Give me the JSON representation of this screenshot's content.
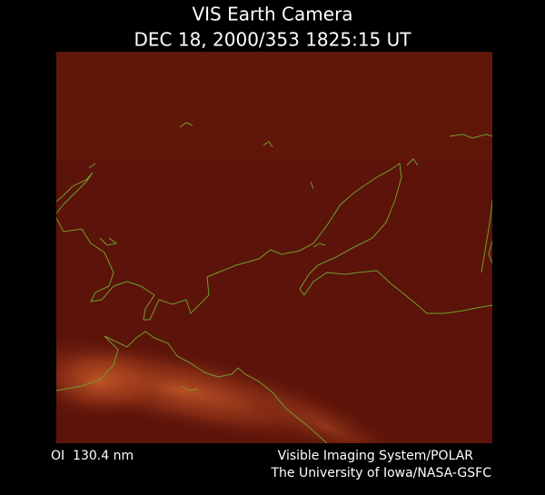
{
  "header": {
    "title": "VIS Earth Camera",
    "timestamp": "DEC 18, 2000/353 1825:15 UT"
  },
  "footer": {
    "filter": "OI  130.4 nm",
    "instrument": "Visible Imaging System/POLAR",
    "institution": "The University of Iowa/NASA-GSFC"
  }
}
